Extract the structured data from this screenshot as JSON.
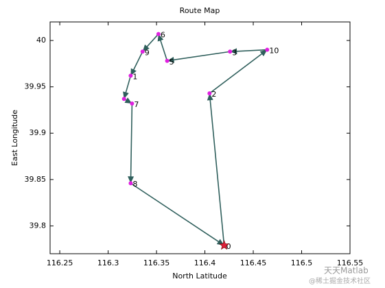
{
  "chart_data": {
    "type": "route",
    "title": "Route Map",
    "x_label": "North Latitude",
    "y_label": "East Longitude",
    "x": [
      116.4199,
      116.4048,
      116.4644,
      116.426,
      116.361,
      116.352,
      116.3356,
      116.3233,
      116.3164,
      116.3247,
      116.3233,
      116.4199
    ],
    "y": [
      39.779,
      39.943,
      39.99,
      39.988,
      39.978,
      40.007,
      39.988,
      39.962,
      39.937,
      39.932,
      39.846,
      39.779
    ],
    "point_labels": [
      "0",
      "2",
      "10",
      "3",
      "5",
      "6",
      "9",
      "1",
      null,
      "7",
      "8",
      null
    ],
    "color": "#2f5f5c",
    "point_color": "#e020e0",
    "start_color": "#e0203a",
    "xlim": [
      116.24,
      116.55
    ],
    "ylim": [
      39.77,
      40.02
    ],
    "xticks": [
      116.25,
      116.3,
      116.35,
      116.4,
      116.45,
      116.5,
      116.55
    ],
    "yticks": [
      39.8,
      39.85,
      39.9,
      39.95,
      40
    ]
  },
  "watermark": {
    "line1": "天天Matlab",
    "line2": "@稀土掘金技术社区"
  }
}
